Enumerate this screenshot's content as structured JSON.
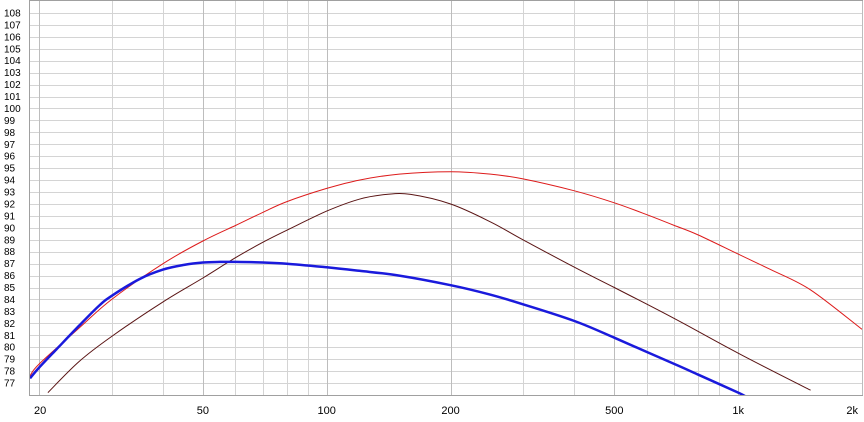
{
  "chart_data": {
    "type": "line",
    "title": "",
    "xlabel": "",
    "ylabel": "",
    "x_scale": "log",
    "xlim": [
      19,
      2000
    ],
    "ylim": [
      76,
      109
    ],
    "grid": true,
    "legend": "none",
    "x_ticks": [
      {
        "value": 20,
        "label": "20"
      },
      {
        "value": 50,
        "label": "50"
      },
      {
        "value": 100,
        "label": "100"
      },
      {
        "value": 200,
        "label": "200"
      },
      {
        "value": 500,
        "label": "500"
      },
      {
        "value": 1000,
        "label": "1k"
      },
      {
        "value": 2000,
        "label": "2k"
      }
    ],
    "x_minor_grid": [
      30,
      40,
      60,
      70,
      80,
      90,
      300,
      400,
      600,
      700,
      800,
      900
    ],
    "y_ticks": [
      77,
      78,
      79,
      80,
      81,
      82,
      83,
      84,
      85,
      86,
      87,
      88,
      89,
      90,
      91,
      92,
      93,
      94,
      95,
      96,
      97,
      98,
      99,
      100,
      101,
      102,
      103,
      104,
      105,
      106,
      107,
      108
    ],
    "series": [
      {
        "color": "#dd1b1b",
        "stroke_width": 1,
        "points": [
          [
            19,
            77.6
          ],
          [
            20,
            78.6
          ],
          [
            25,
            81.6
          ],
          [
            30,
            84.0
          ],
          [
            40,
            87.0
          ],
          [
            50,
            88.9
          ],
          [
            60,
            90.2
          ],
          [
            70,
            91.3
          ],
          [
            80,
            92.2
          ],
          [
            100,
            93.3
          ],
          [
            120,
            94.0
          ],
          [
            150,
            94.5
          ],
          [
            200,
            94.7
          ],
          [
            250,
            94.5
          ],
          [
            300,
            94.1
          ],
          [
            400,
            93.1
          ],
          [
            500,
            92.1
          ],
          [
            600,
            91.1
          ],
          [
            700,
            90.2
          ],
          [
            800,
            89.4
          ],
          [
            1000,
            87.8
          ],
          [
            1200,
            86.5
          ],
          [
            1500,
            84.8
          ],
          [
            2000,
            81.5
          ]
        ]
      },
      {
        "color": "#5a1414",
        "stroke_width": 1,
        "points": [
          [
            21,
            76.2
          ],
          [
            25,
            78.8
          ],
          [
            30,
            80.9
          ],
          [
            40,
            83.8
          ],
          [
            50,
            85.8
          ],
          [
            60,
            87.5
          ],
          [
            70,
            88.8
          ],
          [
            80,
            89.8
          ],
          [
            100,
            91.4
          ],
          [
            120,
            92.4
          ],
          [
            140,
            92.8
          ],
          [
            160,
            92.8
          ],
          [
            200,
            92.0
          ],
          [
            250,
            90.5
          ],
          [
            300,
            89.0
          ],
          [
            400,
            86.7
          ],
          [
            500,
            85.0
          ],
          [
            700,
            82.4
          ],
          [
            1000,
            79.5
          ],
          [
            1500,
            76.4
          ]
        ]
      },
      {
        "color": "#1a1adc",
        "stroke_width": 2.5,
        "points": [
          [
            19,
            77.4
          ],
          [
            20,
            78.3
          ],
          [
            22,
            79.8
          ],
          [
            25,
            81.8
          ],
          [
            28,
            83.5
          ],
          [
            30,
            84.3
          ],
          [
            35,
            85.7
          ],
          [
            40,
            86.5
          ],
          [
            45,
            86.9
          ],
          [
            50,
            87.1
          ],
          [
            55,
            87.15
          ],
          [
            60,
            87.15
          ],
          [
            70,
            87.1
          ],
          [
            80,
            87.0
          ],
          [
            100,
            86.7
          ],
          [
            120,
            86.4
          ],
          [
            150,
            86.0
          ],
          [
            200,
            85.2
          ],
          [
            250,
            84.4
          ],
          [
            300,
            83.6
          ],
          [
            400,
            82.2
          ],
          [
            500,
            80.8
          ],
          [
            600,
            79.6
          ],
          [
            700,
            78.6
          ],
          [
            800,
            77.7
          ],
          [
            1000,
            76.2
          ],
          [
            1040,
            75.9
          ]
        ]
      }
    ]
  }
}
